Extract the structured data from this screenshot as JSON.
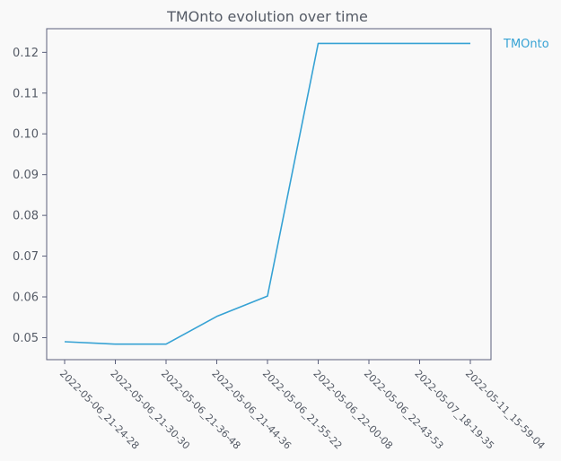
{
  "chart_data": {
    "type": "line",
    "title": "TMOnto evolution over time",
    "xlabel": "",
    "ylabel": "",
    "x": [
      "2022-05-06_21-24-28",
      "2022-05-06_21-30-30",
      "2022-05-06_21-36-48",
      "2022-05-06_21-44-36",
      "2022-05-06_21-55-22",
      "2022-05-06_22-00-08",
      "2022-05-06_22-43-53",
      "2022-05-07_18-19-35",
      "2022-05-11_15-59-04"
    ],
    "series": [
      {
        "name": "TMOnto",
        "color": "#36a2d4",
        "values": [
          0.049,
          0.0484,
          0.0484,
          0.0552,
          0.0602,
          0.1222,
          0.1222,
          0.1222,
          0.1222
        ]
      }
    ],
    "yticks": [
      "0.05",
      "0.06",
      "0.07",
      "0.08",
      "0.09",
      "0.10",
      "0.11",
      "0.12"
    ],
    "ylim": [
      0.0446,
      0.1258
    ],
    "grid": false,
    "legend_position": "right"
  }
}
